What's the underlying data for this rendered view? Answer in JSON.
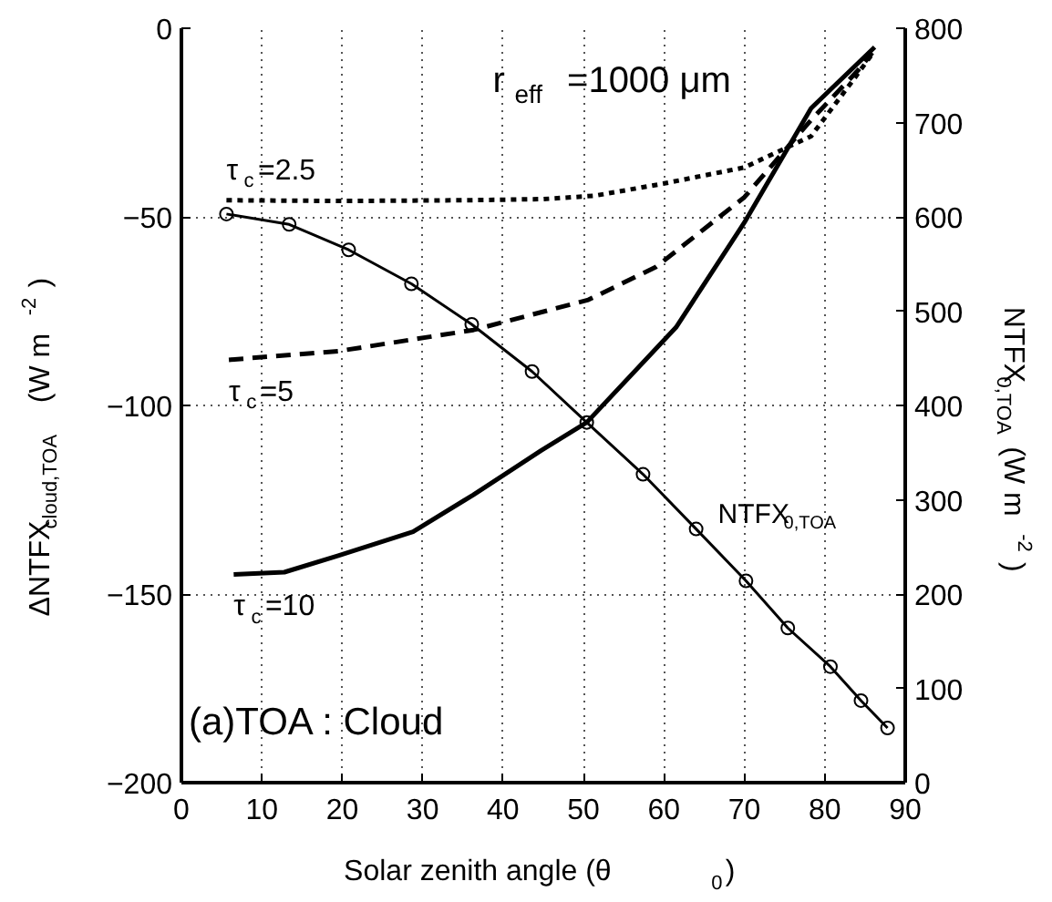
{
  "chart_data": {
    "type": "line",
    "xlabel": "Solar zenith angle (θ$_{0}$)",
    "ylabel": "ΔNTFX$_{cloud,TOA}$ (W m$^{-2}$)",
    "y2label": "NTFX$_{0,TOA}$ (W m$^{-2}$)",
    "xlim": [
      0,
      90
    ],
    "xticks": [
      0,
      10,
      20,
      30,
      40,
      50,
      60,
      70,
      80,
      90
    ],
    "ylim": [
      -200,
      0
    ],
    "yticks": [
      -200,
      -150,
      -100,
      -50,
      0
    ],
    "y2lim": [
      0,
      800
    ],
    "y2ticks": [
      0,
      100,
      200,
      300,
      400,
      500,
      600,
      700,
      800
    ],
    "grid": true,
    "annotations": [
      "r$_{eff}$=1000 μm",
      "(a)TOA : Cloud"
    ],
    "series": [
      {
        "name": "τ$_{c}$=2.5",
        "color": "#000000",
        "line_style": "dotted",
        "marker": "none",
        "x": [
          5.6,
          20,
          35,
          45,
          51.4,
          59.9,
          70,
          78.3,
          83.4,
          85.9
        ],
        "values": [
          -45.6,
          -45.8,
          -45.6,
          -45.3,
          -44.4,
          -41.2,
          -36.9,
          -28.6,
          -14.1,
          -6.8
        ]
      },
      {
        "name": "τ$_{c}$=5",
        "color": "#000000",
        "line_style": "dashed",
        "marker": "none",
        "x": [
          5.9,
          19.5,
          36.3,
          50.6,
          59,
          70,
          78.3,
          84.2,
          85.9
        ],
        "values": [
          -87.9,
          -85.6,
          -80.0,
          -72.0,
          -63.3,
          -44.8,
          -24.3,
          -11.0,
          -6.5
        ]
      },
      {
        "name": "τ$_{c}$=10",
        "color": "#000000",
        "line_style": "solid",
        "marker": "none",
        "x": [
          6.5,
          12.8,
          19.5,
          28.8,
          36.3,
          44.7,
          50.4,
          61.5,
          70,
          78.3,
          86.2
        ],
        "values": [
          -144.8,
          -144.2,
          -139.8,
          -133.5,
          -123.7,
          -112.0,
          -104.5,
          -79.3,
          -51.5,
          -21.2,
          -5
        ]
      },
      {
        "name": "NTFX$_{0,TOA}$",
        "color": "#000000",
        "line_style": "solid",
        "marker": "circle",
        "axis": "y2",
        "x": [
          5.6,
          13.4,
          20.8,
          28.6,
          36.1,
          43.6,
          50.4,
          57.4,
          64.0,
          70.2,
          75.4,
          80.7,
          84.5,
          87.8
        ],
        "values": [
          603,
          592,
          565,
          529,
          486,
          436,
          382,
          327,
          269,
          214,
          164,
          123,
          87,
          58
        ]
      }
    ]
  }
}
